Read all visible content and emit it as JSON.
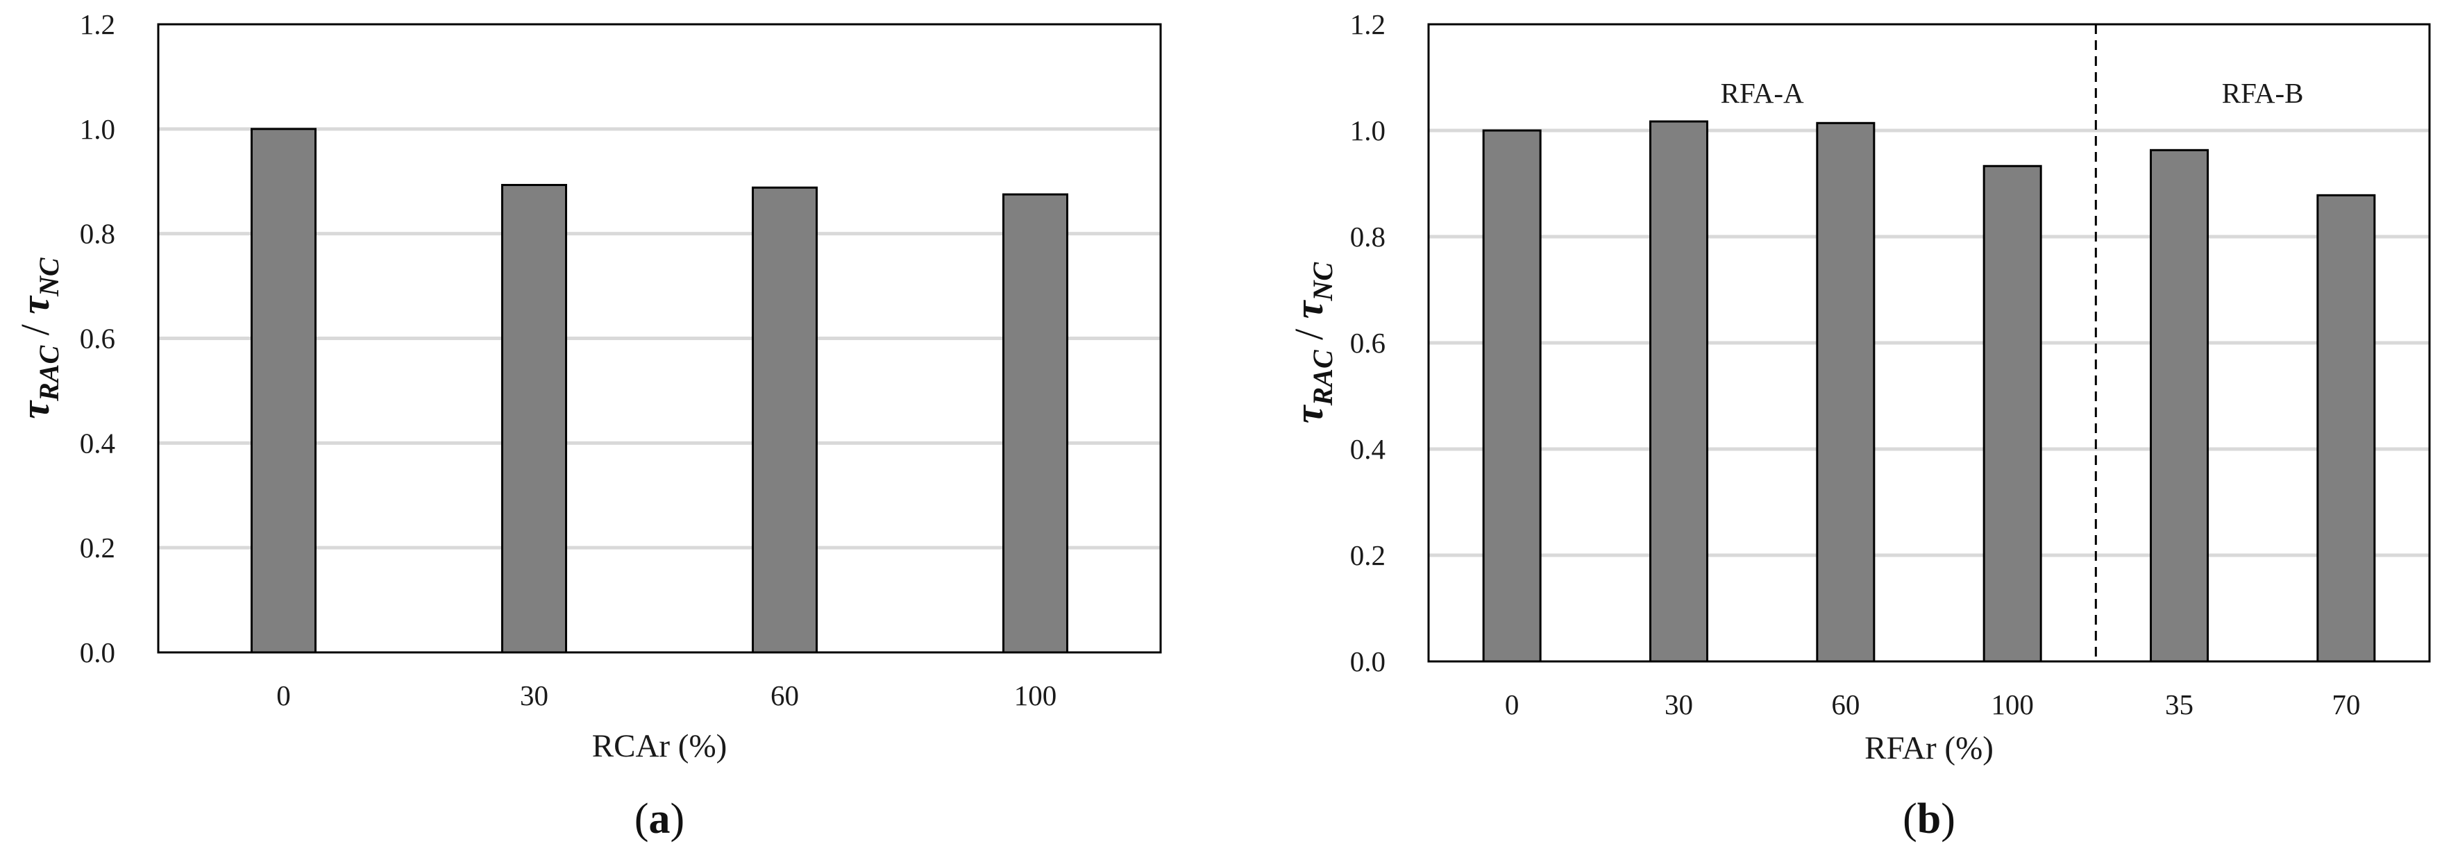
{
  "chart_data": [
    {
      "type": "bar",
      "panel_label": "a",
      "categories": [
        "0",
        "30",
        "60",
        "100"
      ],
      "values": [
        1.0,
        0.893,
        0.888,
        0.875
      ],
      "xlabel": "RCAr (%)",
      "ylabel": {
        "tau": "τ",
        "num_sub": "RAC",
        "sep": " / ",
        "den_sub": "NC"
      },
      "ylim": [
        0,
        1.2
      ],
      "yticks": [
        "0.0",
        "0.2",
        "0.4",
        "0.6",
        "0.8",
        "1.0",
        "1.2"
      ],
      "grid": true,
      "bar_color": "#808080"
    },
    {
      "type": "bar",
      "panel_label": "b",
      "categories": [
        "0",
        "30",
        "60",
        "100",
        "35",
        "70"
      ],
      "values": [
        1.0,
        1.017,
        1.014,
        0.933,
        0.963,
        0.878
      ],
      "groups": [
        {
          "label": "RFA-A",
          "categories": [
            "0",
            "30",
            "60",
            "100"
          ]
        },
        {
          "label": "RFA-B",
          "categories": [
            "35",
            "70"
          ]
        }
      ],
      "xlabel": "RFAr (%)",
      "ylabel": {
        "tau": "τ",
        "num_sub": "RAC",
        "sep": " / ",
        "den_sub": "NC"
      },
      "ylim": [
        0,
        1.2
      ],
      "yticks": [
        "0.0",
        "0.2",
        "0.4",
        "0.6",
        "0.8",
        "1.0",
        "1.2"
      ],
      "grid": true,
      "bar_color": "#808080"
    }
  ],
  "panel_brackets": [
    "(",
    ")"
  ]
}
